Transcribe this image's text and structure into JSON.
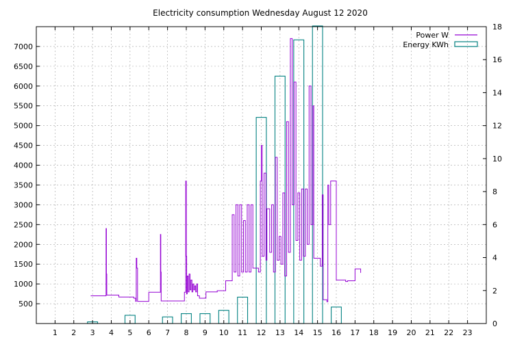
{
  "chart_data": {
    "type": "line",
    "title": "Electricity consumption Wednesday August 12 2020",
    "x_range": [
      0,
      24
    ],
    "x_ticks": [
      1,
      2,
      3,
      4,
      5,
      6,
      7,
      8,
      9,
      10,
      11,
      12,
      13,
      14,
      15,
      16,
      17,
      18,
      19,
      20,
      21,
      22,
      23
    ],
    "y_left_range": [
      0,
      7500
    ],
    "y_left_ticks": [
      500,
      1000,
      1500,
      2000,
      2500,
      3000,
      3500,
      4000,
      4500,
      5000,
      5500,
      6000,
      6500,
      7000
    ],
    "y_right_range": [
      0,
      18
    ],
    "y_right_ticks": [
      0,
      2,
      4,
      6,
      8,
      10,
      12,
      14,
      16,
      18
    ],
    "grid": true,
    "legend_position": "top-right",
    "series": [
      {
        "name": "Power W",
        "axis": "left",
        "style": "line",
        "color": "#9400d3",
        "x": [
          2.9,
          3.7,
          3.72,
          3.74,
          3.76,
          4.3,
          4.4,
          5.0,
          5.2,
          5.3,
          5.33,
          5.36,
          5.4,
          5.92,
          6.0,
          6.6,
          6.62,
          6.64,
          6.66,
          7.0,
          7.1,
          7.6,
          7.9,
          7.95,
          7.97,
          8.0,
          8.02,
          8.05,
          8.1,
          8.15,
          8.2,
          8.25,
          8.3,
          8.35,
          8.4,
          8.45,
          8.5,
          8.55,
          8.6,
          8.65,
          8.7,
          9.0,
          9.05,
          9.6,
          9.65,
          10.1,
          10.4,
          10.45,
          10.55,
          10.65,
          10.75,
          10.85,
          10.95,
          11.05,
          11.15,
          11.25,
          11.35,
          11.45,
          11.55,
          11.65,
          11.75,
          11.85,
          11.95,
          12.0,
          12.05,
          12.15,
          12.25,
          12.3,
          12.45,
          12.55,
          12.65,
          12.75,
          12.85,
          12.95,
          13.05,
          13.15,
          13.25,
          13.35,
          13.45,
          13.55,
          13.65,
          13.75,
          13.85,
          13.95,
          14.05,
          14.15,
          14.25,
          14.35,
          14.45,
          14.55,
          14.65,
          14.75,
          14.8,
          15.05,
          15.15,
          15.25,
          15.3,
          15.5,
          15.55,
          15.6,
          15.7,
          16.0,
          16.5,
          16.6,
          16.7,
          17.0,
          17.3
        ],
        "y": [
          700,
          700,
          2400,
          1250,
          720,
          720,
          670,
          670,
          640,
          560,
          1650,
          1400,
          560,
          560,
          790,
          790,
          2250,
          1300,
          570,
          570,
          570,
          570,
          790,
          790,
          3600,
          1700,
          750,
          1200,
          800,
          1250,
          850,
          1100,
          800,
          1000,
          850,
          950,
          800,
          1000,
          700,
          700,
          640,
          640,
          800,
          800,
          830,
          1080,
          1080,
          2750,
          1300,
          3000,
          1200,
          3000,
          1300,
          2600,
          1300,
          3000,
          1300,
          3000,
          1400,
          1400,
          1400,
          1300,
          3600,
          4500,
          1700,
          3800,
          1600,
          2900,
          1800,
          3000,
          1300,
          4200,
          1600,
          2200,
          1500,
          3300,
          1200,
          5100,
          1800,
          7200,
          3000,
          6100,
          2100,
          3300,
          1600,
          3400,
          1700,
          3400,
          2000,
          6000,
          2500,
          5500,
          1650,
          1650,
          1450,
          3250,
          600,
          550,
          3500,
          2500,
          3600,
          1100,
          1060,
          1080,
          1080,
          1380,
          1280
        ]
      },
      {
        "name": "Energy KWh",
        "axis": "right",
        "style": "boxes",
        "color": "#008080",
        "x": [
          3,
          4,
          5,
          6,
          7,
          8,
          9,
          10,
          11,
          12,
          13,
          14,
          15,
          16,
          17
        ],
        "values": [
          0.1,
          0,
          0.5,
          0,
          0.4,
          0.6,
          0.6,
          0.8,
          1.6,
          12.5,
          15.0,
          17.2,
          18.5,
          1.0,
          0
        ]
      }
    ]
  }
}
